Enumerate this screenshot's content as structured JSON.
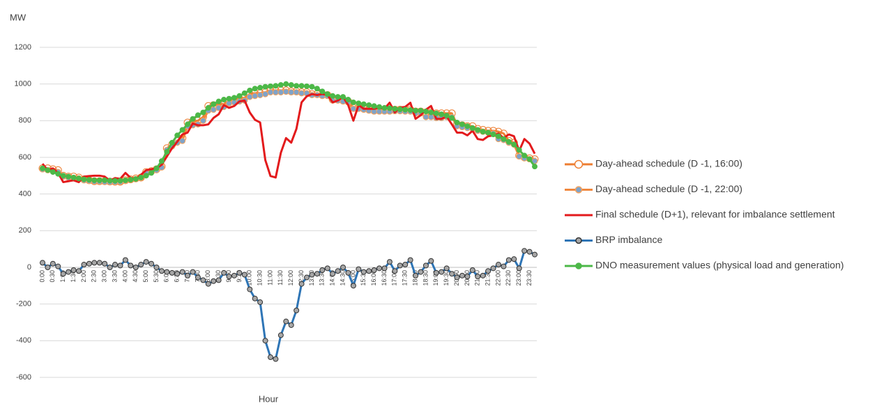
{
  "chart_data": {
    "type": "line",
    "y_label": "MW",
    "x_label": "Hour",
    "ylim": [
      -600,
      1200
    ],
    "yticks": [
      -600,
      -400,
      -200,
      0,
      200,
      400,
      600,
      800,
      1000,
      1200
    ],
    "grid": true,
    "legend": "right",
    "categories": [
      "0:00",
      null,
      "0:30",
      null,
      "1:00",
      null,
      "1:30",
      null,
      "2:00",
      null,
      "2:30",
      null,
      "3:00",
      null,
      "3:30",
      null,
      "4:00",
      null,
      "4:30",
      null,
      "5:00",
      null,
      "5:30",
      null,
      "6:00",
      null,
      "6:30",
      null,
      "7:00",
      null,
      "7:30",
      null,
      "8:00",
      null,
      "8:30",
      null,
      "9:00",
      null,
      "9:30",
      null,
      "10:00",
      null,
      "10:30",
      null,
      "11:00",
      null,
      "11:30",
      null,
      "12:00",
      null,
      "12:30",
      null,
      "13:00",
      null,
      "13:30",
      null,
      "14:00",
      null,
      "14:30",
      null,
      "15:00",
      null,
      "15:30",
      null,
      "16:00",
      null,
      "16:30",
      null,
      "17:00",
      null,
      "17:30",
      null,
      "18:00",
      null,
      "18:30",
      null,
      "19:00",
      null,
      "19:30",
      null,
      "20:00",
      null,
      "20:30",
      null,
      "21:00",
      null,
      "21:30",
      null,
      "22:00",
      null,
      "22:30",
      null,
      "23:00",
      null,
      "23:30",
      null
    ],
    "series": [
      {
        "name": "Day-ahead schedule (D -1, 16:00)",
        "color": "#ed7d31",
        "marker_fill": "none",
        "marker_stroke": "#ed7d31",
        "marker_size": 5,
        "values": [
          540,
          540,
          535,
          530,
          500,
          495,
          495,
          490,
          480,
          475,
          470,
          470,
          470,
          468,
          467,
          467,
          475,
          480,
          485,
          490,
          520,
          525,
          535,
          550,
          650,
          670,
          690,
          705,
          790,
          795,
          800,
          820,
          880,
          885,
          890,
          890,
          910,
          915,
          920,
          925,
          945,
          950,
          950,
          955,
          965,
          965,
          965,
          965,
          960,
          960,
          955,
          955,
          945,
          945,
          940,
          940,
          915,
          915,
          910,
          905,
          870,
          870,
          865,
          860,
          855,
          855,
          855,
          855,
          860,
          860,
          860,
          860,
          850,
          850,
          845,
          845,
          840,
          840,
          840,
          840,
          780,
          775,
          770,
          770,
          755,
          750,
          745,
          745,
          740,
          730,
          690,
          680,
          610,
          600,
          595,
          590
        ]
      },
      {
        "name": "Day-ahead schedule (D -1, 22:00)",
        "color": "#f0883e",
        "marker_fill": "#7fa3c9",
        "marker_stroke": "#f4a460",
        "marker_size": 4,
        "values": [
          535,
          530,
          525,
          520,
          495,
          490,
          488,
          485,
          475,
          472,
          468,
          468,
          466,
          465,
          465,
          466,
          472,
          478,
          482,
          488,
          515,
          520,
          530,
          545,
          640,
          660,
          680,
          690,
          770,
          775,
          780,
          800,
          855,
          860,
          870,
          875,
          895,
          900,
          905,
          910,
          930,
          935,
          940,
          945,
          955,
          955,
          955,
          958,
          955,
          955,
          950,
          950,
          940,
          940,
          935,
          935,
          910,
          910,
          905,
          900,
          865,
          865,
          860,
          855,
          850,
          850,
          850,
          850,
          852,
          852,
          850,
          850,
          840,
          840,
          820,
          820,
          815,
          815,
          820,
          820,
          770,
          765,
          760,
          755,
          745,
          740,
          735,
          730,
          700,
          695,
          680,
          670,
          605,
          595,
          590,
          580
        ]
      },
      {
        "name": "Final schedule (D+1), relevant for imbalance settlement",
        "color": "#e31a1c",
        "marker_fill": "none",
        "marker_stroke": "none",
        "marker_size": 0,
        "values": [
          565,
          530,
          540,
          515,
          465,
          470,
          475,
          465,
          495,
          498,
          500,
          500,
          495,
          473,
          487,
          483,
          515,
          488,
          482,
          505,
          530,
          535,
          540,
          560,
          605,
          650,
          685,
          725,
          735,
          785,
          775,
          775,
          780,
          815,
          835,
          885,
          870,
          880,
          905,
          910,
          845,
          805,
          790,
          585,
          498,
          490,
          625,
          705,
          680,
          755,
          900,
          933,
          945,
          940,
          945,
          940,
          900,
          910,
          930,
          885,
          800,
          885,
          865,
          865,
          865,
          870,
          865,
          898,
          845,
          872,
          875,
          898,
          810,
          830,
          860,
          880,
          810,
          810,
          823,
          780,
          735,
          735,
          720,
          745,
          700,
          695,
          715,
          720,
          730,
          705,
          725,
          715,
          635,
          700,
          675,
          620
        ]
      },
      {
        "name": "BRP imbalance",
        "color": "#2e75b6",
        "marker_fill": "#a6a6a6",
        "marker_stroke": "#333333",
        "marker_size": 3.5,
        "values": [
          25,
          0,
          20,
          5,
          -35,
          -25,
          -15,
          -20,
          15,
          20,
          25,
          25,
          20,
          0,
          15,
          10,
          40,
          10,
          0,
          15,
          30,
          20,
          0,
          -20,
          -25,
          -30,
          -35,
          -25,
          -45,
          -25,
          -55,
          -70,
          -90,
          -75,
          -70,
          -30,
          -50,
          -45,
          -30,
          -40,
          -120,
          -170,
          -190,
          -400,
          -490,
          -500,
          -370,
          -295,
          -315,
          -235,
          -90,
          -55,
          -40,
          -35,
          -15,
          -5,
          -35,
          -20,
          0,
          -30,
          -100,
          -10,
          -25,
          -20,
          -15,
          -5,
          -5,
          30,
          -20,
          10,
          15,
          40,
          -45,
          -25,
          10,
          35,
          -30,
          -25,
          -5,
          -35,
          -55,
          -45,
          -50,
          -15,
          -50,
          -45,
          -20,
          -5,
          15,
          5,
          40,
          45,
          -5,
          90,
          85,
          70
        ]
      },
      {
        "name": "DNO measurement values (physical load and generation)",
        "color": "#4cb848",
        "marker_fill": "#4cb848",
        "marker_stroke": "#4cb848",
        "marker_size": 3.5,
        "values": [
          540,
          530,
          520,
          510,
          500,
          495,
          490,
          485,
          480,
          478,
          475,
          475,
          475,
          473,
          472,
          473,
          475,
          478,
          482,
          490,
          500,
          515,
          540,
          580,
          630,
          680,
          720,
          750,
          780,
          810,
          830,
          845,
          870,
          890,
          905,
          915,
          920,
          925,
          935,
          950,
          965,
          975,
          980,
          985,
          988,
          990,
          995,
          1000,
          995,
          990,
          990,
          988,
          985,
          975,
          960,
          945,
          935,
          930,
          930,
          915,
          900,
          895,
          890,
          885,
          880,
          875,
          870,
          868,
          865,
          862,
          860,
          858,
          855,
          855,
          850,
          845,
          840,
          835,
          828,
          815,
          790,
          780,
          770,
          760,
          750,
          740,
          735,
          725,
          715,
          700,
          685,
          670,
          640,
          610,
          590,
          550
        ]
      }
    ]
  }
}
